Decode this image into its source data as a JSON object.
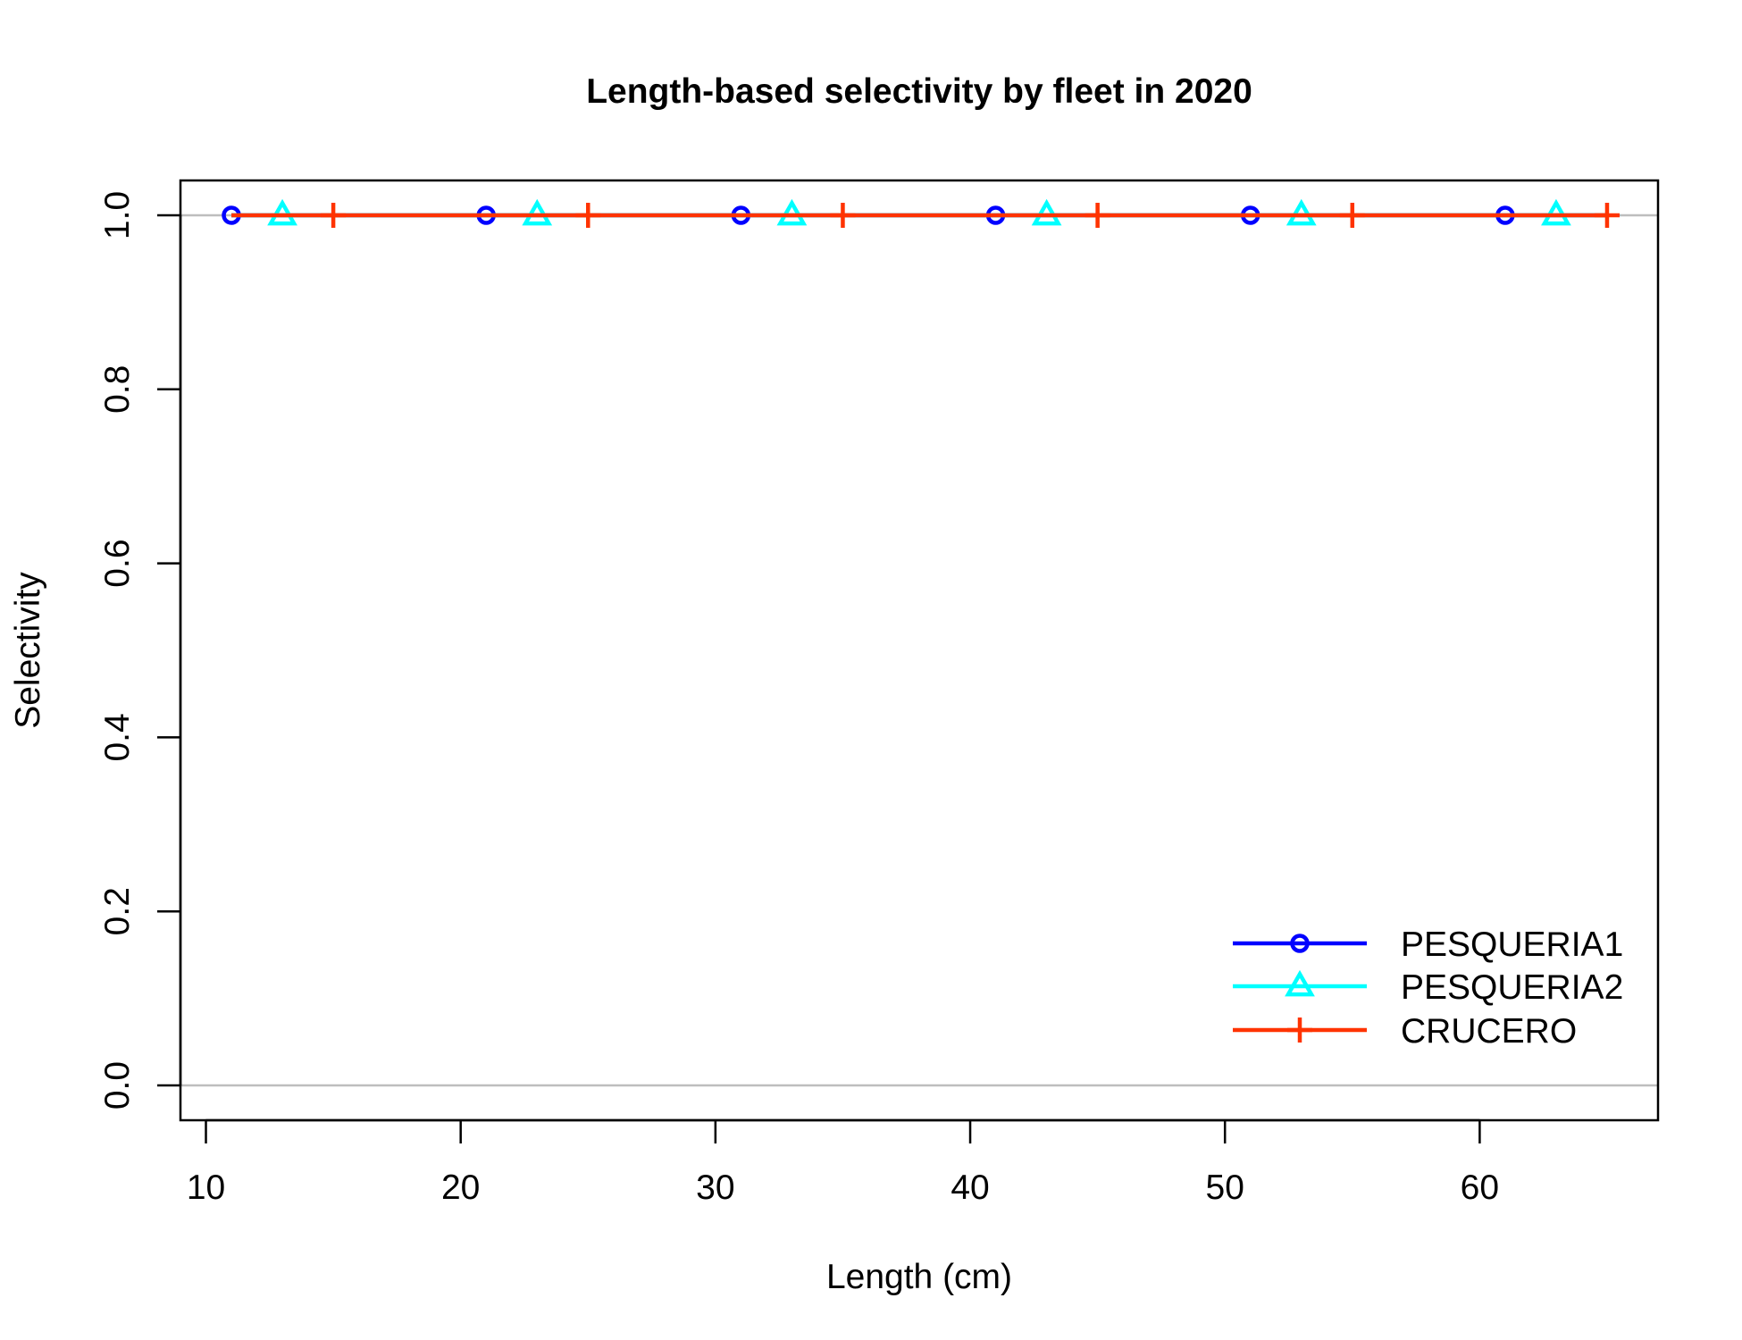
{
  "chart_data": {
    "type": "line",
    "title": "Length-based selectivity by fleet in 2020",
    "xlabel": "Length (cm)",
    "ylabel": "Selectivity",
    "xlim": [
      9,
      67
    ],
    "ylim": [
      -0.04,
      1.04
    ],
    "x_ticks": [
      10,
      20,
      30,
      40,
      50,
      60
    ],
    "x_tick_labels": [
      "10",
      "20",
      "30",
      "40",
      "50",
      "60"
    ],
    "y_ticks": [
      0.0,
      0.2,
      0.4,
      0.6,
      0.8,
      1.0
    ],
    "y_tick_labels": [
      "0.0",
      "0.2",
      "0.4",
      "0.6",
      "0.8",
      "1.0"
    ],
    "reference_lines_y": [
      0,
      1
    ],
    "grid": false,
    "legend_position": "bottom-right",
    "series": [
      {
        "name": "PESQUERIA1",
        "color": "#0000ff",
        "marker": "circle",
        "x": [
          11,
          13,
          15,
          17,
          19,
          21,
          23,
          25,
          27,
          29,
          31,
          33,
          35,
          37,
          39,
          41,
          43,
          45,
          47,
          49,
          51,
          53,
          55,
          57,
          59,
          61,
          63,
          65
        ],
        "y": [
          1,
          1,
          1,
          1,
          1,
          1,
          1,
          1,
          1,
          1,
          1,
          1,
          1,
          1,
          1,
          1,
          1,
          1,
          1,
          1,
          1,
          1,
          1,
          1,
          1,
          1,
          1,
          1
        ],
        "marker_x": [
          11,
          21,
          31,
          41,
          51,
          61
        ]
      },
      {
        "name": "PESQUERIA2",
        "color": "#00ffff",
        "marker": "triangle",
        "x": [
          11,
          13,
          15,
          17,
          19,
          21,
          23,
          25,
          27,
          29,
          31,
          33,
          35,
          37,
          39,
          41,
          43,
          45,
          47,
          49,
          51,
          53,
          55,
          57,
          59,
          61,
          63,
          65
        ],
        "y": [
          1,
          1,
          1,
          1,
          1,
          1,
          1,
          1,
          1,
          1,
          1,
          1,
          1,
          1,
          1,
          1,
          1,
          1,
          1,
          1,
          1,
          1,
          1,
          1,
          1,
          1,
          1,
          1
        ],
        "marker_x": [
          13,
          23,
          33,
          43,
          53,
          63
        ]
      },
      {
        "name": "CRUCERO",
        "color": "#ff3300",
        "marker": "plus",
        "x": [
          11,
          13,
          15,
          17,
          19,
          21,
          23,
          25,
          27,
          29,
          31,
          33,
          35,
          37,
          39,
          41,
          43,
          45,
          47,
          49,
          51,
          53,
          55,
          57,
          59,
          61,
          63,
          65
        ],
        "y": [
          1,
          1,
          1,
          1,
          1,
          1,
          1,
          1,
          1,
          1,
          1,
          1,
          1,
          1,
          1,
          1,
          1,
          1,
          1,
          1,
          1,
          1,
          1,
          1,
          1,
          1,
          1,
          1
        ],
        "marker_x": [
          15,
          25,
          35,
          45,
          55,
          65
        ]
      }
    ]
  },
  "colors": {
    "axis": "#000000",
    "reference_line": "#bebebe",
    "background": "#ffffff"
  }
}
